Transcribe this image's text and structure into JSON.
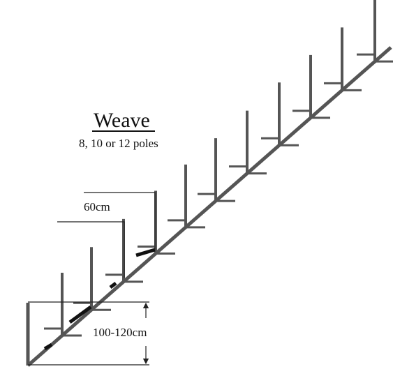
{
  "title": "Weave",
  "subtitle": "8, 10 or 12 poles",
  "spacing_label": "60cm",
  "height_label": "100-120cm",
  "colors": {
    "poles": "#555555",
    "text": "#111111",
    "marks": "#111111"
  }
}
